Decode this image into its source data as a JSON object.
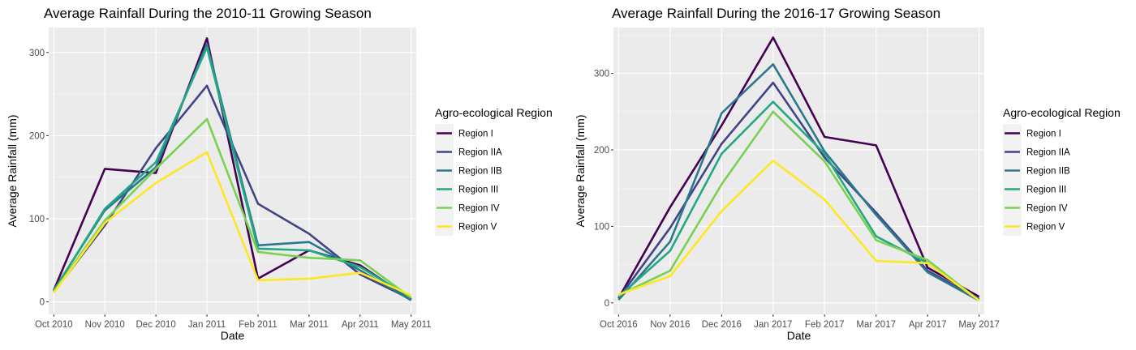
{
  "chart_data": [
    {
      "type": "line",
      "title": "Average Rainfall During the 2010-11 Growing Season",
      "xlabel": "Date",
      "ylabel": "Average Rainfall (mm)",
      "ylim": [
        -15,
        330
      ],
      "yticks": [
        0,
        100,
        200,
        300
      ],
      "categories": [
        "Oct 2010",
        "Nov 2010",
        "Dec 2010",
        "Jan 2011",
        "Feb 2011",
        "Mar 2011",
        "Apr 2011",
        "May 2011"
      ],
      "grid": true,
      "legend_title": "Agro-ecological Region",
      "legend_position": "right",
      "series": [
        {
          "name": "Region I",
          "color": "#440154",
          "values": [
            14,
            160,
            155,
            317,
            28,
            62,
            44,
            3
          ]
        },
        {
          "name": "Region IIA",
          "color": "#414487",
          "values": [
            12,
            92,
            185,
            260,
            118,
            82,
            33,
            3
          ]
        },
        {
          "name": "Region IIB",
          "color": "#2a788e",
          "values": [
            14,
            110,
            162,
            310,
            68,
            72,
            38,
            2
          ]
        },
        {
          "name": "Region III",
          "color": "#22a884",
          "values": [
            13,
            112,
            168,
            306,
            64,
            62,
            42,
            5
          ]
        },
        {
          "name": "Region IV",
          "color": "#7ad151",
          "values": [
            12,
            98,
            160,
            220,
            60,
            53,
            50,
            5
          ]
        },
        {
          "name": "Region V",
          "color": "#fde725",
          "values": [
            11,
            95,
            143,
            180,
            26,
            28,
            35,
            8
          ]
        }
      ]
    },
    {
      "type": "line",
      "title": "Average Rainfall During the 2016-17 Growing Season",
      "xlabel": "Date",
      "ylabel": "Average Rainfall (mm)",
      "ylim": [
        -15,
        360
      ],
      "yticks": [
        0,
        100,
        200,
        300
      ],
      "categories": [
        "Oct 2016",
        "Nov 2016",
        "Dec 2016",
        "Jan 2017",
        "Feb 2017",
        "Mar 2017",
        "Apr 2017",
        "May 2017"
      ],
      "grid": true,
      "legend_title": "Agro-ecological Region",
      "legend_position": "right",
      "series": [
        {
          "name": "Region I",
          "color": "#440154",
          "values": [
            6,
            125,
            232,
            347,
            217,
            206,
            46,
            8
          ]
        },
        {
          "name": "Region IIA",
          "color": "#414487",
          "values": [
            6,
            98,
            208,
            288,
            190,
            118,
            42,
            5
          ]
        },
        {
          "name": "Region IIB",
          "color": "#2a788e",
          "values": [
            4,
            80,
            248,
            312,
            198,
            115,
            40,
            3
          ]
        },
        {
          "name": "Region III",
          "color": "#22a884",
          "values": [
            8,
            68,
            195,
            263,
            195,
            87,
            52,
            4
          ]
        },
        {
          "name": "Region IV",
          "color": "#7ad151",
          "values": [
            10,
            42,
            155,
            250,
            185,
            82,
            56,
            3
          ]
        },
        {
          "name": "Region V",
          "color": "#fde725",
          "values": [
            11,
            35,
            120,
            186,
            135,
            55,
            52,
            3
          ]
        }
      ]
    }
  ]
}
